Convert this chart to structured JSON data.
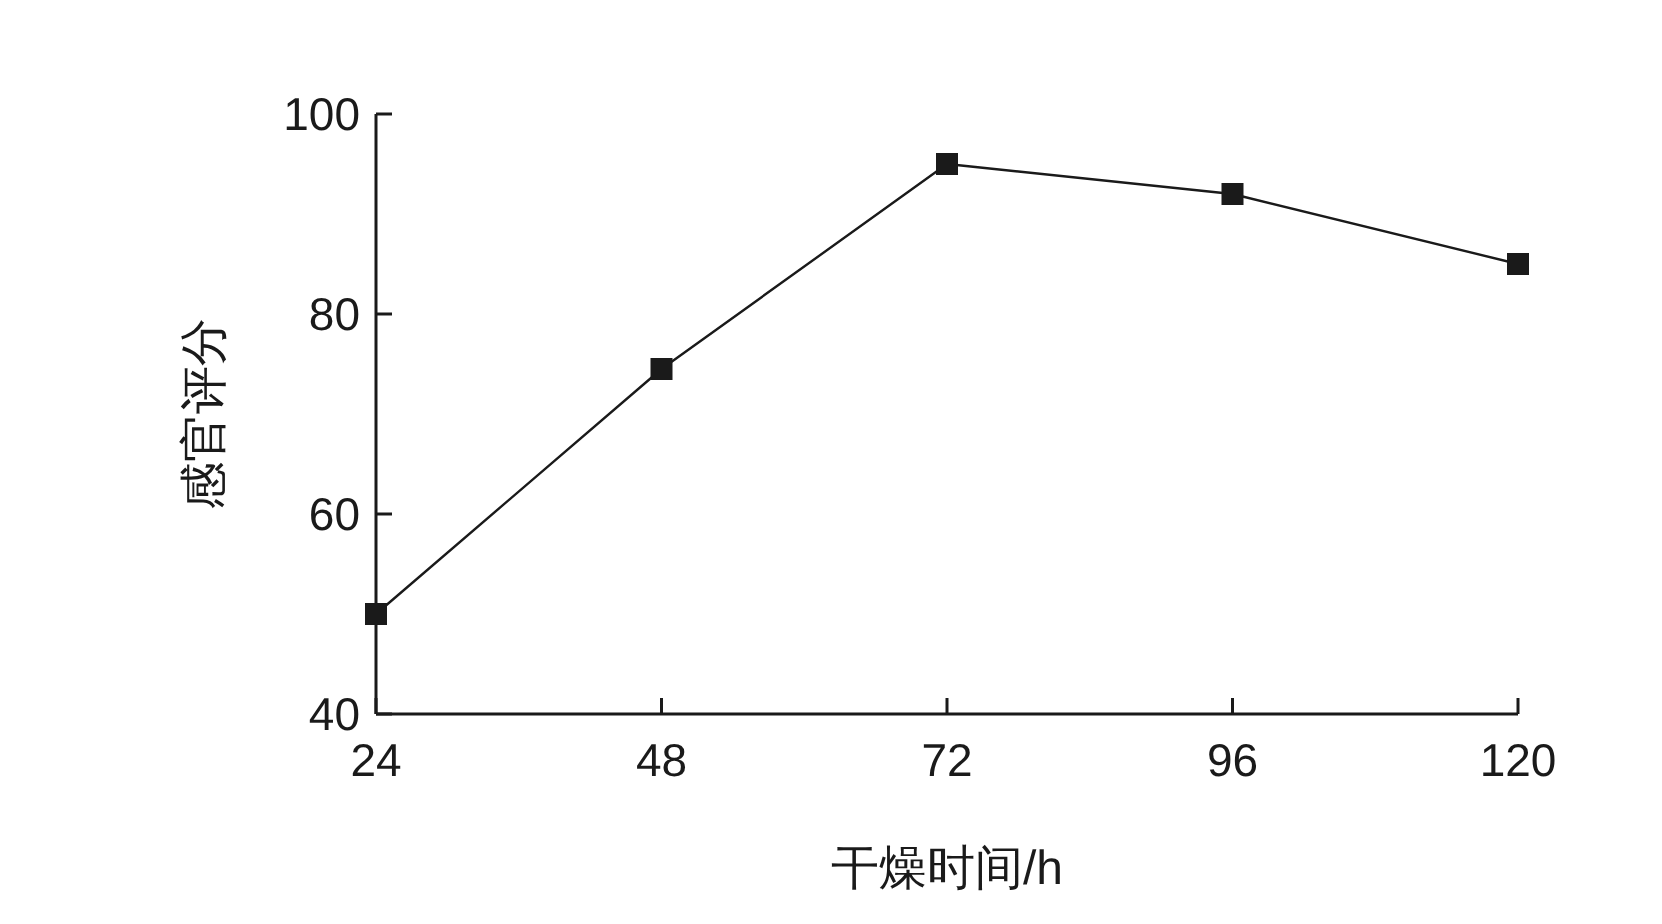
{
  "chart_data": {
    "type": "line",
    "xlabel": "干燥时间/h",
    "ylabel": "感官评分",
    "x": [
      24,
      48,
      72,
      96,
      120
    ],
    "series": [
      {
        "color": "#1a1a1a",
        "values": [
          50,
          74.5,
          95,
          92,
          85
        ]
      }
    ],
    "xlim": [
      24,
      120
    ],
    "xticks": [
      24,
      48,
      72,
      96,
      120
    ],
    "ylim": [
      40,
      100
    ],
    "yticks": [
      40,
      60,
      80,
      100
    ],
    "marker": "square",
    "line_style": "solid",
    "grid": false
  }
}
